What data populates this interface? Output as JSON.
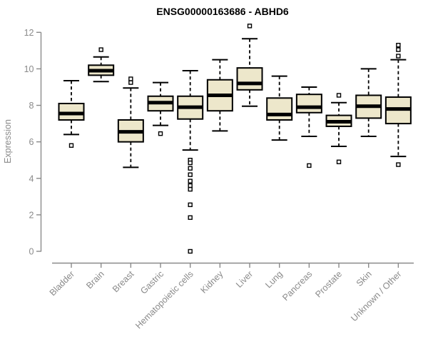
{
  "title": "ENSG00000163686 - ABHD6",
  "colors": {
    "box_fill": "#EDE7CB",
    "box_border": "#000000",
    "median": "#000000",
    "whisker": "#000000",
    "outlier_stroke": "#000000",
    "outlier_fill": "#ffffff",
    "axis": "#8a8a8a",
    "tick_label": "#8a8a8a",
    "title_color": "#000000",
    "background": "#ffffff"
  },
  "chart_data": {
    "type": "boxplot",
    "title": "ENSG00000163686 - ABHD6",
    "xlabel": "",
    "ylabel": "Expression",
    "ylim": [
      0,
      12
    ],
    "yticks": [
      0,
      2,
      4,
      6,
      8,
      10,
      12
    ],
    "grid": false,
    "legend": false,
    "categories": [
      "Bladder",
      "Brain",
      "Breast",
      "Gastric",
      "Hematopoietic cells",
      "Kidney",
      "Liver",
      "Lung",
      "Pancreas",
      "Prostate",
      "Skin",
      "Unknown / Other"
    ],
    "series": [
      {
        "name": "Bladder",
        "whisker_low": 6.4,
        "q1": 7.2,
        "median": 7.55,
        "q3": 8.1,
        "whisker_high": 9.35,
        "outliers": [
          5.8
        ]
      },
      {
        "name": "Brain",
        "whisker_low": 9.3,
        "q1": 9.65,
        "median": 9.9,
        "q3": 10.2,
        "whisker_high": 10.65,
        "outliers": [
          11.05
        ]
      },
      {
        "name": "Breast",
        "whisker_low": 4.6,
        "q1": 6.0,
        "median": 6.55,
        "q3": 7.2,
        "whisker_high": 8.95,
        "outliers": [
          9.25,
          9.45
        ]
      },
      {
        "name": "Gastric",
        "whisker_low": 6.9,
        "q1": 7.7,
        "median": 8.15,
        "q3": 8.5,
        "whisker_high": 9.25,
        "outliers": [
          6.45
        ]
      },
      {
        "name": "Hematopoietic cells",
        "whisker_low": 5.55,
        "q1": 7.25,
        "median": 7.9,
        "q3": 8.5,
        "whisker_high": 9.9,
        "outliers": [
          5.0,
          4.85,
          4.55,
          4.2,
          3.85,
          3.6,
          3.4,
          2.55,
          1.85,
          0.0
        ]
      },
      {
        "name": "Kidney",
        "whisker_low": 6.6,
        "q1": 7.7,
        "median": 8.55,
        "q3": 9.4,
        "whisker_high": 10.5,
        "outliers": []
      },
      {
        "name": "Liver",
        "whisker_low": 7.95,
        "q1": 8.85,
        "median": 9.2,
        "q3": 10.05,
        "whisker_high": 11.65,
        "outliers": [
          12.35
        ]
      },
      {
        "name": "Lung",
        "whisker_low": 6.1,
        "q1": 7.2,
        "median": 7.5,
        "q3": 8.4,
        "whisker_high": 9.6,
        "outliers": []
      },
      {
        "name": "Pancreas",
        "whisker_low": 6.3,
        "q1": 7.6,
        "median": 7.9,
        "q3": 8.6,
        "whisker_high": 9.0,
        "outliers": [
          4.7
        ]
      },
      {
        "name": "Prostate",
        "whisker_low": 5.75,
        "q1": 6.85,
        "median": 7.1,
        "q3": 7.45,
        "whisker_high": 8.15,
        "outliers": [
          8.55,
          4.9
        ]
      },
      {
        "name": "Skin",
        "whisker_low": 6.3,
        "q1": 7.3,
        "median": 7.95,
        "q3": 8.55,
        "whisker_high": 10.0,
        "outliers": []
      },
      {
        "name": "Unknown / Other",
        "whisker_low": 5.2,
        "q1": 7.0,
        "median": 7.8,
        "q3": 8.45,
        "whisker_high": 10.5,
        "outliers": [
          11.3,
          11.05,
          10.7,
          4.75
        ]
      }
    ]
  }
}
